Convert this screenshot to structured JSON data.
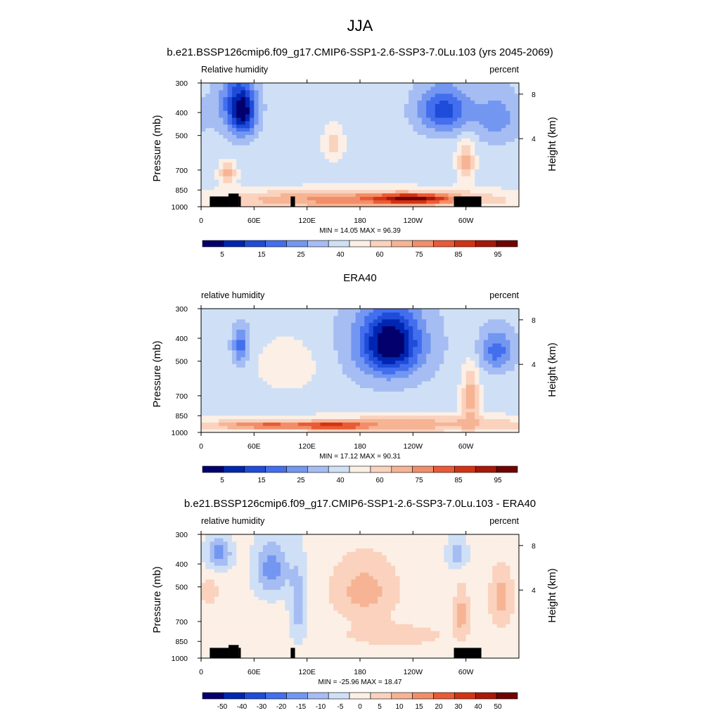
{
  "figure": {
    "title": "JJA"
  },
  "chart_data": [
    {
      "type": "heatmap",
      "title": "b.e21.BSSP126cmip6.f09_g17.CMIP6-SSP1-2.6-SSP3-7.0Lu.103 (yrs 2045-2069)",
      "left_label": "Relative humidity",
      "right_label": "percent",
      "xlabel": "",
      "ylabel": "Pressure (mb)",
      "ylabel_right": "Height (km)",
      "x_ticks": [
        "0",
        "60E",
        "120E",
        "180",
        "120W",
        "60W"
      ],
      "y_ticks": [
        "300",
        "400",
        "500",
        "700",
        "850",
        "1000"
      ],
      "y_ticks_right": [
        "8",
        "4"
      ],
      "min": "14.05",
      "max": "96.39",
      "stats_text": "MIN =  14.05  MAX =  96.39",
      "colorbar_labels": [
        "5",
        "15",
        "25",
        "40",
        "60",
        "75",
        "85",
        "95"
      ],
      "colorbar_colors": [
        "#03006d",
        "#0026b1",
        "#1f4cd9",
        "#436eee",
        "#7397f1",
        "#a5bdf3",
        "#cfe0f6",
        "#fcefe5",
        "#fad2bd",
        "#f6b495",
        "#f18e69",
        "#ea5a36",
        "#d43313",
        "#a81808",
        "#700202"
      ],
      "terrain": true
    },
    {
      "type": "heatmap",
      "title": "ERA40",
      "left_label": "relative humidity",
      "right_label": "percent",
      "xlabel": "",
      "ylabel": "Pressure (mb)",
      "ylabel_right": "Height (km)",
      "x_ticks": [
        "0",
        "60E",
        "120E",
        "180",
        "120W",
        "60W"
      ],
      "y_ticks": [
        "300",
        "400",
        "500",
        "700",
        "850",
        "1000"
      ],
      "y_ticks_right": [
        "8",
        "4"
      ],
      "min": "17.12",
      "max": "90.31",
      "stats_text": "MIN =  17.12  MAX =  90.31",
      "colorbar_labels": [
        "5",
        "15",
        "25",
        "40",
        "60",
        "75",
        "85",
        "95"
      ],
      "colorbar_colors": [
        "#03006d",
        "#0026b1",
        "#1f4cd9",
        "#436eee",
        "#7397f1",
        "#a5bdf3",
        "#cfe0f6",
        "#fcefe5",
        "#fad2bd",
        "#f6b495",
        "#f18e69",
        "#ea5a36",
        "#d43313",
        "#a81808",
        "#700202"
      ],
      "terrain": false
    },
    {
      "type": "heatmap",
      "title": "b.e21.BSSP126cmip6.f09_g17.CMIP6-SSP1-2.6-SSP3-7.0Lu.103 - ERA40",
      "left_label": "relative humidity",
      "right_label": "percent",
      "xlabel": "",
      "ylabel": "Pressure (mb)",
      "ylabel_right": "Height (km)",
      "x_ticks": [
        "0",
        "60E",
        "120E",
        "180",
        "120W",
        "60W"
      ],
      "y_ticks": [
        "300",
        "400",
        "500",
        "700",
        "850",
        "1000"
      ],
      "y_ticks_right": [
        "8",
        "4"
      ],
      "min": "-25.96",
      "max": "18.47",
      "stats_text": "MIN = -25.96  MAX =  18.47",
      "colorbar_labels": [
        "-50",
        "-40",
        "-30",
        "-20",
        "-15",
        "-10",
        "-5",
        "0",
        "5",
        "10",
        "15",
        "20",
        "30",
        "40",
        "50"
      ],
      "colorbar_colors": [
        "#03006d",
        "#0026b1",
        "#1f4cd9",
        "#436eee",
        "#7397f1",
        "#a5bdf3",
        "#cfe0f6",
        "#fcefe5",
        "#fad2bd",
        "#f6b495",
        "#f18e69",
        "#ea5a36",
        "#d43313",
        "#a81808",
        "#700202"
      ],
      "terrain": true
    }
  ]
}
